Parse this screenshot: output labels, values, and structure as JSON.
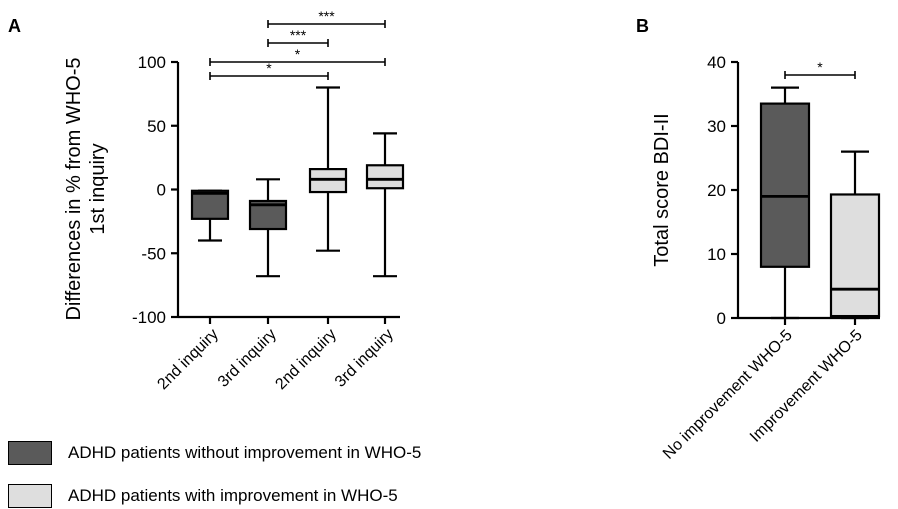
{
  "panel_labels": {
    "a": "A",
    "b": "B"
  },
  "colors": {
    "dark_box": "#5a5a5a",
    "light_box": "#dedede",
    "line": "#000000"
  },
  "legend": [
    {
      "label": "ADHD patients without improvement in  WHO-5",
      "color": "#5a5a5a"
    },
    {
      "label": "ADHD patients with improvement in  WHO-5",
      "color": "#dedede"
    }
  ],
  "chart_data": [
    {
      "type": "boxplot",
      "panel": "A",
      "ylabel_line1": "Differences in % from WHO-5",
      "ylabel_line2": "1st inquiry",
      "ylim": [
        -100,
        100
      ],
      "yticks": [
        "100",
        "50",
        "0",
        "-50",
        "-100"
      ],
      "ytick_values": [
        100,
        50,
        0,
        -50,
        -100
      ],
      "categories": [
        "2nd inquiry",
        "3rd inquiry",
        "2nd inquiry",
        "3rd inquiry"
      ],
      "boxes": [
        {
          "group": "without improvement",
          "color": "#5a5a5a",
          "min": -40,
          "q1": -23,
          "median": -3,
          "q3": -1,
          "max": -1
        },
        {
          "group": "without improvement",
          "color": "#5a5a5a",
          "min": -68,
          "q1": -31,
          "median": -12,
          "q3": -9,
          "max": 8
        },
        {
          "group": "with improvement",
          "color": "#dedede",
          "min": -48,
          "q1": -2,
          "median": 8,
          "q3": 16,
          "max": 80
        },
        {
          "group": "with improvement",
          "color": "#dedede",
          "min": -68,
          "q1": 1,
          "median": 8,
          "q3": 19,
          "max": 44
        }
      ],
      "significance": [
        {
          "from": 1,
          "to": 3,
          "label": "***"
        },
        {
          "from": 1,
          "to": 2,
          "label": "***"
        },
        {
          "from": 0,
          "to": 3,
          "label": "*"
        },
        {
          "from": 0,
          "to": 2,
          "label": "*"
        }
      ]
    },
    {
      "type": "boxplot",
      "panel": "B",
      "ylabel": "Total score BDI-II",
      "ylim": [
        0,
        40
      ],
      "yticks": [
        "40",
        "30",
        "20",
        "10",
        "0"
      ],
      "ytick_values": [
        40,
        30,
        20,
        10,
        0
      ],
      "categories": [
        "No improvement WHO-5",
        "Improvement WHO-5"
      ],
      "boxes": [
        {
          "color": "#5a5a5a",
          "min": 0,
          "q1": 8,
          "median": 19,
          "q3": 33.5,
          "max": 36
        },
        {
          "color": "#dedede",
          "min": 0,
          "q1": 0.3,
          "median": 4.5,
          "q3": 19.3,
          "max": 26
        }
      ],
      "significance": [
        {
          "from": 0,
          "to": 1,
          "label": "*"
        }
      ]
    }
  ]
}
